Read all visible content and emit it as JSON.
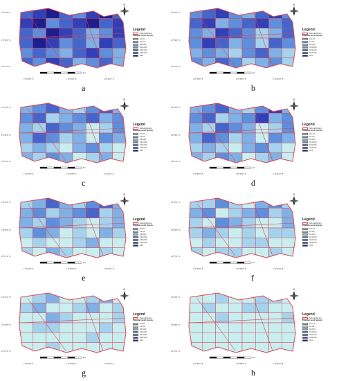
{
  "colors": {
    "boundary": "#d9454f",
    "classes": [
      "#c9eef0",
      "#a5d3ed",
      "#7fb0e6",
      "#5e8fdc",
      "#4466cc",
      "#2f40b8",
      "#1d1e8e"
    ]
  },
  "legend": {
    "title": "Legend",
    "subcatchment_label": "Sub-catchment",
    "density_title": "Potential runoff density",
    "classes": [
      "0-0·C1",
      "C1-C4",
      "C4-C14",
      "C14-C24",
      "C24-C34",
      "C34-C44",
      "C44"
    ]
  },
  "axes": {
    "lat": [
      "23°33'0\" N",
      "23°30'0\" N",
      "23°27'0\" N"
    ],
    "lon": [
      "113°36'0\" E",
      "113°39'0\" E",
      "113°42'0\" E"
    ]
  },
  "scale_unit": "km",
  "panels": [
    {
      "letter": "a",
      "fill": [
        4,
        5,
        6,
        4,
        3,
        5,
        6,
        4,
        5,
        6,
        3,
        4,
        5,
        6,
        4,
        5,
        4,
        3,
        6,
        5,
        4,
        2,
        3,
        5,
        4,
        6,
        5,
        3,
        4,
        2,
        5,
        4,
        3,
        4,
        3,
        2,
        4,
        5,
        3,
        2,
        4,
        3,
        5,
        4,
        2,
        3,
        4,
        2
      ]
    },
    {
      "letter": "b",
      "fill": [
        3,
        4,
        5,
        3,
        2,
        4,
        5,
        3,
        4,
        5,
        2,
        3,
        4,
        5,
        3,
        4,
        3,
        2,
        5,
        4,
        3,
        1,
        2,
        4,
        3,
        5,
        4,
        2,
        3,
        1,
        4,
        3,
        2,
        3,
        2,
        1,
        3,
        4,
        2,
        1,
        3,
        2,
        4,
        3,
        1,
        2,
        3,
        1
      ]
    },
    {
      "letter": "c",
      "fill": [
        2,
        3,
        4,
        2,
        1,
        3,
        4,
        2,
        3,
        4,
        1,
        2,
        3,
        4,
        2,
        3,
        2,
        1,
        4,
        3,
        2,
        0,
        1,
        3,
        2,
        4,
        3,
        1,
        2,
        0,
        3,
        2,
        1,
        2,
        1,
        0,
        2,
        3,
        1,
        0,
        2,
        1,
        3,
        2,
        0,
        1,
        2,
        0
      ]
    },
    {
      "letter": "d",
      "fill": [
        2,
        3,
        4,
        2,
        1,
        3,
        5,
        2,
        3,
        4,
        1,
        2,
        3,
        5,
        2,
        3,
        2,
        1,
        4,
        3,
        2,
        0,
        1,
        3,
        2,
        4,
        3,
        1,
        2,
        0,
        3,
        2,
        1,
        2,
        1,
        0,
        2,
        3,
        1,
        0,
        2,
        1,
        3,
        2,
        0,
        1,
        2,
        0
      ]
    },
    {
      "letter": "e",
      "fill": [
        1,
        2,
        4,
        2,
        1,
        3,
        4,
        2,
        2,
        3,
        1,
        2,
        3,
        4,
        1,
        2,
        2,
        1,
        3,
        2,
        1,
        0,
        1,
        2,
        1,
        3,
        2,
        0,
        1,
        0,
        2,
        1,
        0,
        1,
        0,
        0,
        1,
        2,
        0,
        0,
        1,
        0,
        2,
        1,
        0,
        0,
        1,
        0
      ]
    },
    {
      "letter": "f",
      "fill": [
        1,
        1,
        3,
        1,
        0,
        2,
        3,
        1,
        2,
        3,
        0,
        1,
        2,
        3,
        1,
        2,
        1,
        0,
        3,
        2,
        1,
        0,
        0,
        2,
        1,
        2,
        1,
        0,
        1,
        0,
        1,
        1,
        0,
        1,
        0,
        0,
        1,
        1,
        0,
        0,
        1,
        0,
        1,
        1,
        0,
        0,
        1,
        0
      ]
    },
    {
      "letter": "g",
      "fill": [
        0,
        1,
        2,
        0,
        0,
        1,
        2,
        0,
        1,
        2,
        0,
        0,
        1,
        2,
        0,
        1,
        0,
        0,
        2,
        1,
        0,
        0,
        0,
        1,
        0,
        1,
        1,
        0,
        0,
        0,
        1,
        0,
        0,
        0,
        0,
        0,
        0,
        1,
        0,
        0,
        0,
        0,
        1,
        0,
        0,
        0,
        0,
        0
      ]
    },
    {
      "letter": "h",
      "fill": [
        0,
        0,
        1,
        0,
        0,
        1,
        1,
        0,
        0,
        1,
        0,
        0,
        1,
        1,
        0,
        0,
        0,
        0,
        1,
        0,
        0,
        0,
        0,
        1,
        0,
        0,
        0,
        0,
        0,
        0,
        0,
        0,
        0,
        0,
        0,
        0,
        0,
        0,
        0,
        0,
        0,
        0,
        0,
        0,
        0,
        0,
        0,
        0
      ]
    }
  ]
}
